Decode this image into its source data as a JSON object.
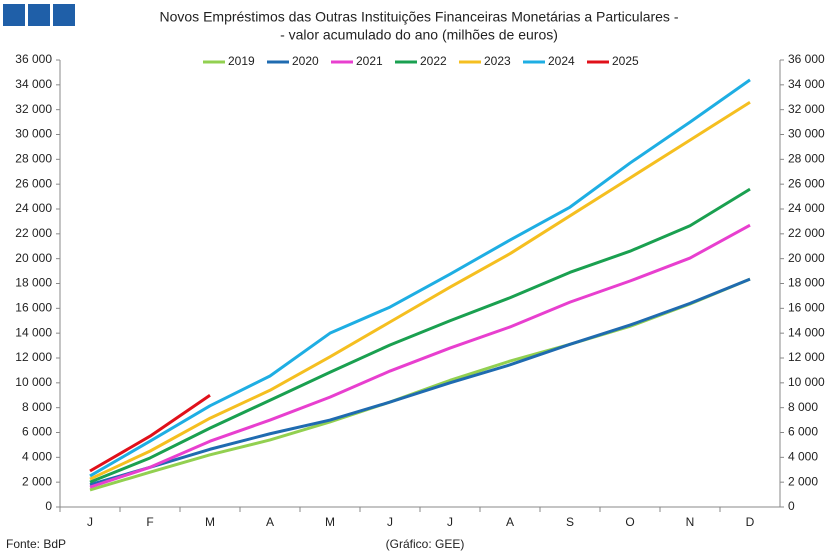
{
  "chart_data": {
    "type": "line",
    "title": [
      "Novos Empréstimos das Outras Instituições Financeiras Monetárias a Particulares -",
      "- valor acumulado do ano (milhões de euros)"
    ],
    "categories": [
      "J",
      "F",
      "M",
      "A",
      "M",
      "J",
      "J",
      "A",
      "S",
      "O",
      "N",
      "D"
    ],
    "series": [
      {
        "name": "2019",
        "color": "#92d050",
        "values": [
          1370,
          2800,
          4200,
          5400,
          6850,
          8450,
          10200,
          11750,
          13100,
          14550,
          16350,
          18350
        ]
      },
      {
        "name": "2020",
        "color": "#1f6bb0",
        "values": [
          1800,
          3200,
          4650,
          5900,
          7000,
          8450,
          10000,
          11450,
          13100,
          14650,
          16400,
          18350
        ]
      },
      {
        "name": "2021",
        "color": "#e83fcf",
        "values": [
          1600,
          3200,
          5300,
          7000,
          8850,
          10950,
          12800,
          14500,
          16500,
          18200,
          20050,
          22700
        ]
      },
      {
        "name": "2022",
        "color": "#1aa050",
        "values": [
          2000,
          3950,
          6350,
          8600,
          10850,
          13050,
          15000,
          16850,
          18900,
          20600,
          22650,
          25600
        ]
      },
      {
        "name": "2023",
        "color": "#f5bf20",
        "values": [
          2250,
          4500,
          7150,
          9400,
          12100,
          14900,
          17700,
          20400,
          23450,
          26500,
          29550,
          32600
        ]
      },
      {
        "name": "2024",
        "color": "#1eaee3",
        "values": [
          2500,
          5300,
          8150,
          10550,
          14000,
          16100,
          18750,
          21500,
          24150,
          27700,
          31000,
          34400
        ]
      },
      {
        "name": "2025",
        "color": "#e0101a",
        "values": [
          2900,
          5700,
          9000,
          null,
          null,
          null,
          null,
          null,
          null,
          null,
          null,
          null
        ]
      }
    ],
    "ylim": [
      0,
      36000
    ],
    "yticks": [
      0,
      {
        "value": 2000,
        "label": "2 000"
      },
      {
        "value": 4000,
        "label": "4 000"
      },
      {
        "value": 6000,
        "label": "6 000"
      },
      {
        "value": 8000,
        "label": "8 000"
      },
      {
        "value": 10000,
        "label": "10 000"
      },
      {
        "value": 12000,
        "label": "12 000"
      },
      {
        "value": 14000,
        "label": "14 000"
      },
      {
        "value": 16000,
        "label": "16 000"
      },
      {
        "value": 18000,
        "label": "18 000"
      },
      {
        "value": 20000,
        "label": "20 000"
      },
      {
        "value": 22000,
        "label": "22 000"
      },
      {
        "value": 24000,
        "label": "24 000"
      },
      {
        "value": 26000,
        "label": "26 000"
      },
      {
        "value": 28000,
        "label": "28 000"
      },
      {
        "value": 30000,
        "label": "30 000"
      },
      {
        "value": 32000,
        "label": "32 000"
      },
      {
        "value": 34000,
        "label": "34 000"
      },
      {
        "value": 36000,
        "label": "36 000"
      }
    ],
    "y2lim": [
      0,
      36000
    ],
    "y2ticks": [
      0,
      {
        "value": 2000,
        "label": "2 000"
      },
      {
        "value": 4000,
        "label": "4 000"
      },
      {
        "value": 6000,
        "label": "6 000"
      },
      {
        "value": 8000,
        "label": "8 000"
      },
      {
        "value": 10000,
        "label": "10 000"
      },
      {
        "value": 12000,
        "label": "12 000"
      },
      {
        "value": 14000,
        "label": "14 000"
      },
      {
        "value": 16000,
        "label": "16 000"
      },
      {
        "value": 18000,
        "label": "18 000"
      },
      {
        "value": 20000,
        "label": "20 000"
      },
      {
        "value": 22000,
        "label": "22 000"
      },
      {
        "value": 24000,
        "label": "24 000"
      },
      {
        "value": 26000,
        "label": "26 000"
      },
      {
        "value": 28000,
        "label": "28 000"
      },
      {
        "value": 30000,
        "label": "30 000"
      },
      {
        "value": 32000,
        "label": "32 000"
      },
      {
        "value": 34000,
        "label": "34 000"
      },
      {
        "value": 36000,
        "label": "36 000"
      }
    ],
    "grid": false,
    "legend": "top",
    "source": "Fonte: BdP",
    "credit": "(Gráfico: GEE)"
  }
}
